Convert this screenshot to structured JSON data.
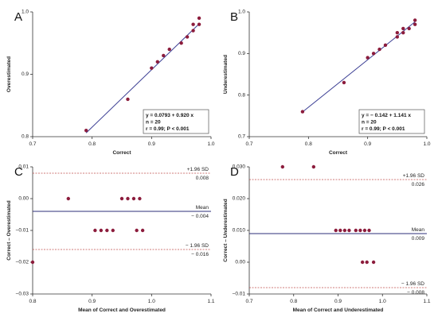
{
  "chart_data": [
    {
      "panel": "A",
      "type": "scatter",
      "xlabel": "Correct",
      "ylabel": "Overestimated",
      "xlim": [
        0.7,
        1.0
      ],
      "ylim": [
        0.8,
        1.0
      ],
      "xticks": [
        "0.7",
        "0.8",
        "0.9",
        "1.0"
      ],
      "yticks": [
        "0.8",
        "0.9",
        "1.0"
      ],
      "points": [
        [
          0.79,
          0.81
        ],
        [
          0.86,
          0.86
        ],
        [
          0.9,
          0.91
        ],
        [
          0.91,
          0.92
        ],
        [
          0.92,
          0.93
        ],
        [
          0.93,
          0.94
        ],
        [
          0.95,
          0.95
        ],
        [
          0.96,
          0.96
        ],
        [
          0.97,
          0.97
        ],
        [
          0.97,
          0.98
        ],
        [
          0.98,
          0.98
        ],
        [
          0.98,
          0.99
        ]
      ],
      "fit": {
        "intercept": 0.0793,
        "slope": 0.92
      },
      "stats": [
        "y = 0.0793 + 0.920 x",
        "n = 20",
        "r = 0.99; P < 0.001"
      ]
    },
    {
      "panel": "B",
      "type": "scatter",
      "xlabel": "Correct",
      "ylabel": "Underestimated",
      "xlim": [
        0.7,
        1.0
      ],
      "ylim": [
        0.7,
        1.0
      ],
      "xticks": [
        "0.7",
        "0.8",
        "0.9",
        "1.0"
      ],
      "yticks": [
        "0.7",
        "0.8",
        "0.9",
        "1.0"
      ],
      "points": [
        [
          0.79,
          0.76
        ],
        [
          0.86,
          0.83
        ],
        [
          0.9,
          0.89
        ],
        [
          0.91,
          0.9
        ],
        [
          0.92,
          0.91
        ],
        [
          0.93,
          0.92
        ],
        [
          0.95,
          0.94
        ],
        [
          0.95,
          0.95
        ],
        [
          0.96,
          0.95
        ],
        [
          0.96,
          0.96
        ],
        [
          0.97,
          0.96
        ],
        [
          0.98,
          0.97
        ],
        [
          0.98,
          0.98
        ]
      ],
      "fit": {
        "intercept": -0.142,
        "slope": 1.141
      },
      "stats": [
        "y = − 0.142 + 1.141 x",
        "n = 20",
        "r = 0.99; P < 0.001"
      ]
    },
    {
      "panel": "C",
      "type": "scatter",
      "xlabel": "Mean of Correct and Overestimated",
      "ylabel": "Correct – Overestimated",
      "xlim": [
        0.8,
        1.1
      ],
      "ylim": [
        -0.03,
        0.01
      ],
      "xticks": [
        "0.8",
        "0.9",
        "1.0",
        "1.1"
      ],
      "yticks": [
        "0.01",
        "0.00",
        "−0.01",
        "−0.02",
        "−0.03"
      ],
      "points": [
        [
          0.8,
          -0.02
        ],
        [
          0.86,
          0.0
        ],
        [
          0.905,
          -0.01
        ],
        [
          0.915,
          -0.01
        ],
        [
          0.925,
          -0.01
        ],
        [
          0.935,
          -0.01
        ],
        [
          0.95,
          0.0
        ],
        [
          0.96,
          0.0
        ],
        [
          0.97,
          0.0
        ],
        [
          0.975,
          -0.01
        ],
        [
          0.98,
          0.0
        ],
        [
          0.985,
          -0.01
        ]
      ],
      "lines": [
        {
          "kind": "sd",
          "y": 0.008,
          "label_top": "+1.96 SD",
          "label_bottom": "0.008"
        },
        {
          "kind": "mean",
          "y": -0.004,
          "label_top": "Mean",
          "label_bottom": "− 0.004"
        },
        {
          "kind": "sd",
          "y": -0.016,
          "label_top": "− 1.96 SD",
          "label_bottom": "− 0.016"
        }
      ]
    },
    {
      "panel": "D",
      "type": "scatter",
      "xlabel": "Mean of Correct and Underestimated",
      "ylabel": "Correct – Underestimated",
      "xlim": [
        0.7,
        1.1
      ],
      "ylim": [
        -0.01,
        0.03
      ],
      "xticks": [
        "0.7",
        "0.8",
        "0.9",
        "1.0",
        "1.1"
      ],
      "yticks": [
        "0.030",
        "0.020",
        "0.010",
        "0.00",
        "−0.01"
      ],
      "points": [
        [
          0.775,
          0.03
        ],
        [
          0.845,
          0.03
        ],
        [
          0.895,
          0.01
        ],
        [
          0.905,
          0.01
        ],
        [
          0.915,
          0.01
        ],
        [
          0.925,
          0.01
        ],
        [
          0.94,
          0.01
        ],
        [
          0.95,
          0.01
        ],
        [
          0.955,
          0.0
        ],
        [
          0.96,
          0.01
        ],
        [
          0.965,
          0.0
        ],
        [
          0.97,
          0.01
        ],
        [
          0.98,
          0.0
        ]
      ],
      "lines": [
        {
          "kind": "sd",
          "y": 0.026,
          "label_top": "+1.96 SD",
          "label_bottom": "0.026"
        },
        {
          "kind": "mean",
          "y": 0.009,
          "label_top": "Mean",
          "label_bottom": "0.009"
        },
        {
          "kind": "sd",
          "y": -0.008,
          "label_top": "− 1.96 SD",
          "label_bottom": "− 0.008"
        }
      ]
    }
  ]
}
